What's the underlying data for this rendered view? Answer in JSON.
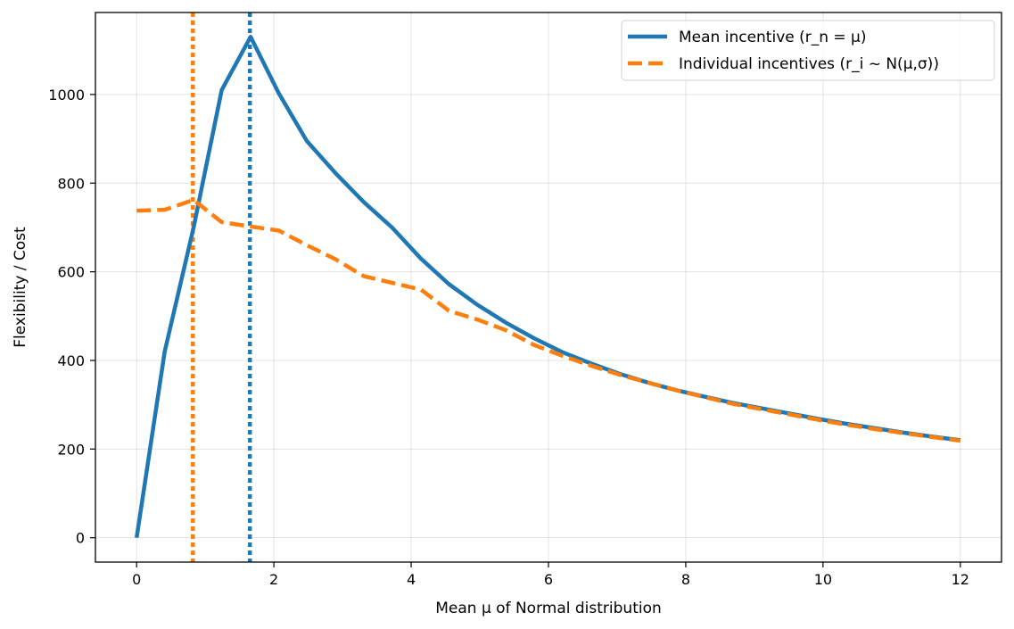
{
  "chart_data": {
    "type": "line",
    "title": "",
    "xlabel": "Mean μ of Normal distribution",
    "ylabel": "Flexibility / Cost",
    "xlim": [
      -0.6,
      12.6
    ],
    "ylim": [
      -55,
      1185
    ],
    "xticks": [
      0,
      2,
      4,
      6,
      8,
      10,
      12
    ],
    "yticks": [
      0,
      200,
      400,
      600,
      800,
      1000
    ],
    "grid": true,
    "legend_position": "top-right",
    "series": [
      {
        "name": "Mean incentive (r_n = μ)",
        "color": "#1f77b4",
        "style": "solid",
        "x": [
          0,
          0.41,
          0.83,
          1.24,
          1.66,
          2.07,
          2.48,
          2.9,
          3.31,
          3.72,
          4.14,
          4.55,
          4.97,
          5.38,
          5.79,
          6.21,
          6.62,
          7.03,
          7.45,
          7.86,
          8.28,
          8.69,
          9.1,
          9.52,
          9.93,
          10.34,
          10.76,
          11.17,
          11.59,
          12.0
        ],
        "y": [
          0,
          420,
          700,
          1010,
          1130,
          1003,
          895,
          822,
          757,
          700,
          630,
          572,
          525,
          485,
          450,
          418,
          393,
          370,
          350,
          333,
          318,
          304,
          292,
          280,
          268,
          257,
          247,
          237,
          228,
          220
        ]
      },
      {
        "name": "Individual incentives (r_i ~ N(μ,σ))",
        "color": "#ff7f0e",
        "style": "dashed",
        "x": [
          0,
          0.41,
          0.83,
          1.24,
          1.66,
          2.07,
          2.48,
          2.9,
          3.31,
          3.72,
          4.14,
          4.55,
          4.97,
          5.38,
          5.79,
          6.21,
          6.62,
          7.03,
          7.45,
          7.86,
          8.28,
          8.69,
          9.1,
          9.52,
          9.93,
          10.34,
          10.76,
          11.17,
          11.59,
          12.0
        ],
        "y": [
          738,
          740,
          762,
          712,
          702,
          693,
          660,
          628,
          590,
          575,
          560,
          512,
          492,
          468,
          435,
          410,
          388,
          368,
          350,
          333,
          317,
          302,
          290,
          278,
          266,
          255,
          245,
          236,
          227,
          219
        ]
      }
    ],
    "vertical_lines": [
      {
        "x": 0.82,
        "color": "#ff7f0e",
        "style": "dotted"
      },
      {
        "x": 1.65,
        "color": "#1f77b4",
        "style": "dotted"
      }
    ]
  }
}
